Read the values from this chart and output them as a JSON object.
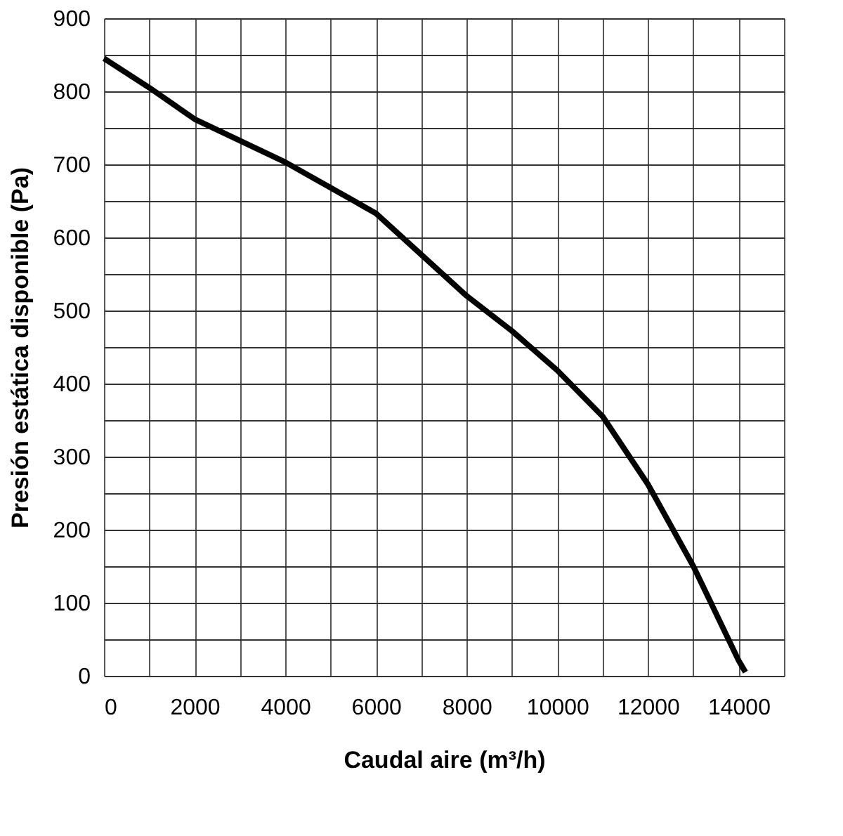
{
  "chart_data": {
    "type": "line",
    "xlabel": "Caudal aire (m³/h)",
    "ylabel": "Presión estática disponible (Pa)",
    "x": [
      0,
      1000,
      2000,
      4000,
      6000,
      8000,
      9000,
      10000,
      11000,
      12000,
      13000,
      14000,
      14150
    ],
    "series": [
      {
        "color": "#000000",
        "values": [
          845,
          805,
          762,
          703,
          633,
          520,
          472,
          418,
          355,
          262,
          150,
          21,
          5
        ]
      }
    ],
    "xlim": [
      0,
      15000
    ],
    "ylim": [
      0,
      900
    ],
    "xticks": [
      0,
      {
        "value": 1000,
        "label": null
      },
      2000,
      {
        "value": 3000,
        "label": null
      },
      4000,
      {
        "value": 5000,
        "label": null
      },
      6000,
      {
        "value": 7000,
        "label": null
      },
      8000,
      {
        "value": 9000,
        "label": null
      },
      10000,
      {
        "value": 11000,
        "label": null
      },
      12000,
      {
        "value": 13000,
        "label": null
      },
      14000,
      {
        "value": 15000,
        "label": null
      }
    ],
    "yticks": [
      0,
      {
        "value": 50,
        "label": null
      },
      100,
      {
        "value": 150,
        "label": null
      },
      200,
      {
        "value": 250,
        "label": null
      },
      300,
      {
        "value": 350,
        "label": null
      },
      400,
      {
        "value": 450,
        "label": null
      },
      500,
      {
        "value": 550,
        "label": null
      },
      600,
      {
        "value": 650,
        "label": null
      },
      700,
      {
        "value": 750,
        "label": null
      },
      800,
      {
        "value": 850,
        "label": null
      },
      900
    ],
    "grid": true,
    "marker": "none",
    "line_style": "solid"
  }
}
